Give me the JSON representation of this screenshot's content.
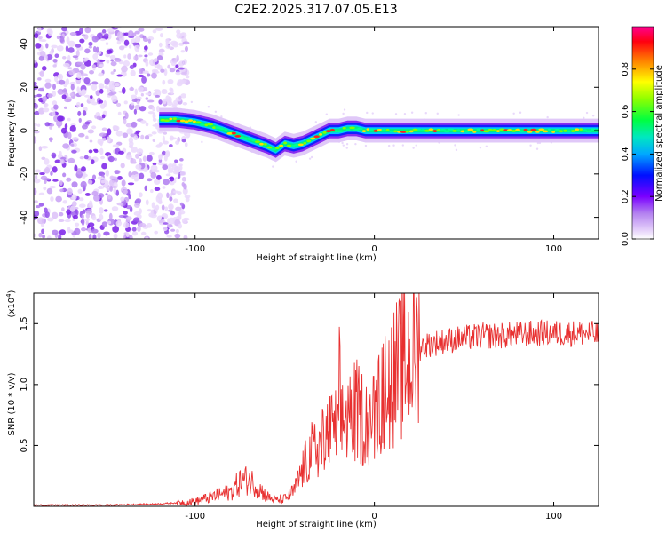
{
  "figure": {
    "title": "C2E2.2025.317.07.05.E13"
  },
  "chart_data": [
    {
      "type": "heatmap",
      "title": "C2E2.2025.317.07.05.E13",
      "xlabel": "Height of straight line (km)",
      "ylabel": "Frequency (Hz)",
      "xlim": [
        -190,
        125
      ],
      "ylim": [
        -50,
        48
      ],
      "xticks": [
        -100,
        0,
        100
      ],
      "yticks": [
        -40,
        -20,
        0,
        20,
        40
      ],
      "noise_region_x": [
        -190,
        -110
      ],
      "ridge": {
        "x": [
          -120,
          -110,
          -100,
          -90,
          -80,
          -70,
          -60,
          -55,
          -50,
          -45,
          -40,
          -35,
          -30,
          -25,
          -20,
          -15,
          -10,
          -5,
          0,
          10,
          20,
          30,
          40,
          50,
          60,
          70,
          80,
          90,
          100,
          110,
          125
        ],
        "frequency_hz": [
          5,
          5,
          4,
          2,
          -1,
          -4,
          -7,
          -9,
          -6,
          -7,
          -6,
          -4,
          -2,
          0,
          0,
          1,
          1,
          0,
          0,
          0,
          0,
          0,
          0,
          0,
          0,
          0,
          0,
          0,
          0,
          0,
          0
        ]
      },
      "colorbar": {
        "label": "Normalized spectral amplitude",
        "ticks": [
          0.0,
          0.2,
          0.4,
          0.6,
          0.8
        ],
        "tick_labels": [
          "0.0",
          "0.2",
          "0.4",
          "0.6",
          "0.8"
        ],
        "range": [
          0,
          1
        ],
        "colormap": [
          "#e8c8f8",
          "#b080f0",
          "#8000ff",
          "#0000ff",
          "#00c0ff",
          "#00ff80",
          "#80ff00",
          "#ffff00",
          "#ff8000",
          "#ff0000",
          "#ff0080"
        ]
      }
    },
    {
      "type": "line",
      "xlabel": "Height of straight line (km)",
      "ylabel": "SNR (10 * v/v)",
      "y_multiplier": "(x10",
      "y_multiplier_exp": "4",
      "y_multiplier_close": ")",
      "xlim": [
        -190,
        125
      ],
      "ylim": [
        0,
        1.75
      ],
      "xticks": [
        -100,
        0,
        100
      ],
      "yticks": [
        0.5,
        1.0,
        1.5
      ],
      "ytick_labels": [
        "0.5",
        "1.0",
        "1.5"
      ],
      "color": "#e83030",
      "series": [
        {
          "name": "SNR",
          "x": [
            -190,
            -150,
            -120,
            -100,
            -90,
            -80,
            -75,
            -70,
            -65,
            -60,
            -55,
            -50,
            -45,
            -40,
            -35,
            -30,
            -25,
            -20,
            -15,
            -10,
            -5,
            0,
            5,
            10,
            15,
            20,
            25,
            30,
            40,
            50,
            60,
            70,
            80,
            90,
            100,
            110,
            120,
            125
          ],
          "values": [
            0.01,
            0.01,
            0.02,
            0.04,
            0.08,
            0.12,
            0.2,
            0.22,
            0.16,
            0.08,
            0.05,
            0.06,
            0.12,
            0.3,
            0.45,
            0.5,
            0.6,
            0.65,
            0.75,
            0.78,
            0.7,
            0.72,
            0.9,
            1.05,
            1.15,
            1.22,
            1.3,
            1.33,
            1.36,
            1.38,
            1.4,
            1.4,
            1.41,
            1.42,
            1.42,
            1.42,
            1.42,
            1.4
          ]
        }
      ]
    }
  ]
}
